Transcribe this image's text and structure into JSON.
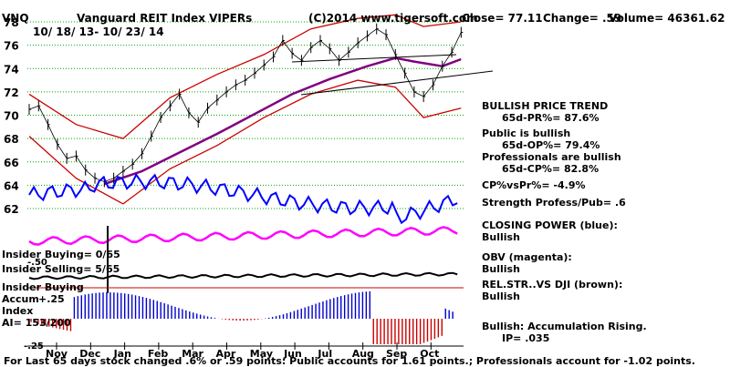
{
  "header": {
    "ticker": "VNQ",
    "name": "Vanguard REIT Index VIPERs",
    "copyright": "(C)2014 www.tigersoft.com",
    "close": "Close=  77.11",
    "change": "Change= .59",
    "volume": "Volume= 46361.62",
    "date_range": "10/ 18/ 13- 10/ 23/ 14"
  },
  "right_panel": {
    "trend_title": "BULLISH PRICE TREND",
    "pr": "65d-PR%= 87.6%",
    "public_title": "Public is bullish",
    "op": "65d-OP%= 79.4%",
    "pros_title": "Professionals are bullish",
    "cp": "65d-CP%= 82.8%",
    "cp_vs_pr": "CP%vsPr%= -4.9%",
    "strength": "Strength Profess/Pub= .6",
    "closing_power": "CLOSING POWER (blue):",
    "closing_power_state": "Bullish",
    "obv": "OBV (magenta):",
    "obv_state": "Bullish",
    "rel_str": "REL.STR..VS DJI (brown):",
    "rel_str_state": "Bullish",
    "accum": "Bullish: Accumulation Rising.",
    "ip": "IP=  .035"
  },
  "left_labels": {
    "insider_buying": "Insider Buying= 0/65",
    "minus50": "-.50",
    "insider_selling": "Insider Selling= 5/65",
    "insider_buying2": "Insider Buying",
    "accum": "Accum",
    "plus25": "+.25",
    "index": "Index",
    "ai": "AI= 153/200",
    "minus25": "-.25"
  },
  "footer": "For Last 65 days stock changed  .6% or  .59 points:  Public accounts for  1.61 points.;  Professionals account for -1.02 points.",
  "colors": {
    "price": "#000000",
    "bands": "#cc0000",
    "ma": "#800080",
    "closing_power": "#0000ff",
    "obv": "#ff00ff",
    "rel_str": "#000000",
    "accum_pos": "#0000cc",
    "accum_neg": "#cc0000",
    "grid": "#00aa00"
  },
  "chart_data": {
    "type": "line",
    "y_ticks": [
      62,
      64,
      66,
      68,
      70,
      72,
      74,
      76,
      78
    ],
    "ylim": [
      61,
      79
    ],
    "x_ticks": [
      "Nov",
      "Dec",
      "Jan",
      "Feb",
      "Mar",
      "Apr",
      "May",
      "Jun",
      "Jul",
      "Aug",
      "Sep",
      "Oct"
    ],
    "price_series": [
      {
        "x": 0,
        "y": 70.5
      },
      {
        "x": 0.3,
        "y": 70.8
      },
      {
        "x": 0.6,
        "y": 69.2
      },
      {
        "x": 0.9,
        "y": 67.5
      },
      {
        "x": 1.2,
        "y": 66.3
      },
      {
        "x": 1.5,
        "y": 66.5
      },
      {
        "x": 1.8,
        "y": 65.3
      },
      {
        "x": 2.1,
        "y": 64.6
      },
      {
        "x": 2.4,
        "y": 64.3
      },
      {
        "x": 2.7,
        "y": 64.6
      },
      {
        "x": 3.0,
        "y": 65.2
      },
      {
        "x": 3.3,
        "y": 65.8
      },
      {
        "x": 3.6,
        "y": 66.7
      },
      {
        "x": 3.9,
        "y": 68.2
      },
      {
        "x": 4.2,
        "y": 69.8
      },
      {
        "x": 4.5,
        "y": 70.8
      },
      {
        "x": 4.8,
        "y": 71.8
      },
      {
        "x": 5.1,
        "y": 70.2
      },
      {
        "x": 5.4,
        "y": 69.4
      },
      {
        "x": 5.7,
        "y": 70.6
      },
      {
        "x": 6.0,
        "y": 71.3
      },
      {
        "x": 6.3,
        "y": 72.0
      },
      {
        "x": 6.6,
        "y": 72.6
      },
      {
        "x": 6.9,
        "y": 73.0
      },
      {
        "x": 7.2,
        "y": 73.6
      },
      {
        "x": 7.5,
        "y": 74.3
      },
      {
        "x": 7.8,
        "y": 75.0
      },
      {
        "x": 8.1,
        "y": 76.4
      },
      {
        "x": 8.4,
        "y": 75.3
      },
      {
        "x": 8.7,
        "y": 74.7
      },
      {
        "x": 9.0,
        "y": 75.8
      },
      {
        "x": 9.3,
        "y": 76.4
      },
      {
        "x": 9.6,
        "y": 75.7
      },
      {
        "x": 9.9,
        "y": 74.7
      },
      {
        "x": 10.2,
        "y": 75.4
      },
      {
        "x": 10.5,
        "y": 76.2
      },
      {
        "x": 10.8,
        "y": 76.8
      },
      {
        "x": 11.1,
        "y": 77.4
      },
      {
        "x": 11.4,
        "y": 76.9
      },
      {
        "x": 11.7,
        "y": 75.2
      },
      {
        "x": 12.0,
        "y": 73.6
      },
      {
        "x": 12.3,
        "y": 72.0
      },
      {
        "x": 12.6,
        "y": 71.6
      },
      {
        "x": 12.9,
        "y": 72.6
      },
      {
        "x": 13.2,
        "y": 74.2
      },
      {
        "x": 13.5,
        "y": 75.4
      },
      {
        "x": 13.8,
        "y": 77.1
      }
    ],
    "ma_series": [
      {
        "x": 2.4,
        "y": 64.1
      },
      {
        "x": 3.6,
        "y": 65.2
      },
      {
        "x": 4.8,
        "y": 66.8
      },
      {
        "x": 6.0,
        "y": 68.4
      },
      {
        "x": 7.2,
        "y": 70.1
      },
      {
        "x": 8.4,
        "y": 71.8
      },
      {
        "x": 9.6,
        "y": 73.1
      },
      {
        "x": 10.8,
        "y": 74.2
      },
      {
        "x": 11.7,
        "y": 74.9
      },
      {
        "x": 12.3,
        "y": 74.6
      },
      {
        "x": 13.2,
        "y": 74.2
      },
      {
        "x": 13.8,
        "y": 74.8
      }
    ],
    "upper_band": [
      {
        "x": 0,
        "y": 71.8
      },
      {
        "x": 1.5,
        "y": 69.2
      },
      {
        "x": 3.0,
        "y": 68.0
      },
      {
        "x": 4.5,
        "y": 71.5
      },
      {
        "x": 6.0,
        "y": 73.5
      },
      {
        "x": 7.5,
        "y": 75.2
      },
      {
        "x": 9.0,
        "y": 77.4
      },
      {
        "x": 10.5,
        "y": 78.3
      },
      {
        "x": 11.7,
        "y": 78.6
      },
      {
        "x": 12.6,
        "y": 77.6
      },
      {
        "x": 13.8,
        "y": 78.0
      }
    ],
    "lower_band": [
      {
        "x": 0,
        "y": 68.2
      },
      {
        "x": 1.5,
        "y": 64.6
      },
      {
        "x": 3.0,
        "y": 62.4
      },
      {
        "x": 4.5,
        "y": 65.4
      },
      {
        "x": 6.0,
        "y": 67.4
      },
      {
        "x": 7.5,
        "y": 69.8
      },
      {
        "x": 9.0,
        "y": 71.8
      },
      {
        "x": 10.5,
        "y": 73.0
      },
      {
        "x": 11.7,
        "y": 72.4
      },
      {
        "x": 12.6,
        "y": 69.8
      },
      {
        "x": 13.8,
        "y": 70.6
      }
    ]
  }
}
